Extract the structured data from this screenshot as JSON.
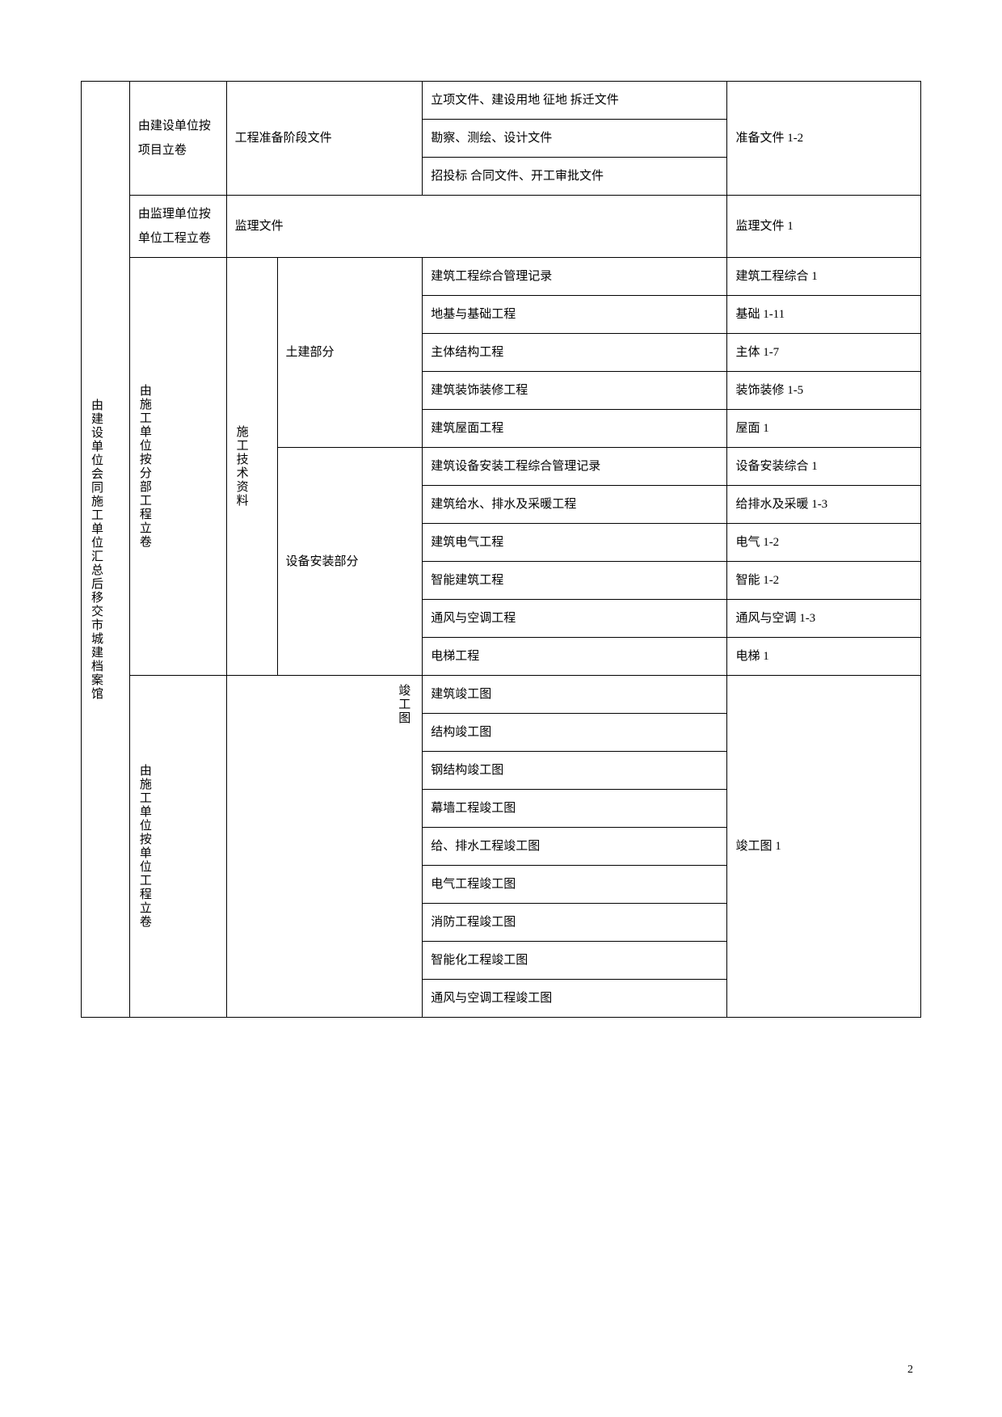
{
  "table": {
    "col1_master": "由建设单位会同施工单位汇总后移交市城建档案馆",
    "section_prep": {
      "by": "由建设单位按项目立卷",
      "stage": "工程准备阶段文件",
      "rows": [
        {
          "desc": "立项文件、建设用地 征地 拆迁文件",
          "code": "准备文件 1-2",
          "code_merge_start": true,
          "code_rowspan": 2
        },
        {
          "desc": "勘察、测绘、设计文件"
        },
        {
          "desc": "招投标 合同文件、开工审批文件",
          "code": ""
        }
      ]
    },
    "section_supervision": {
      "by": "由监理单位按单位工程立卷",
      "stage": "监理文件",
      "code": "监理文件 1"
    },
    "section_construction": {
      "by": "由施工单位按分部工程立卷",
      "mid": "施工技术资料",
      "civil": {
        "label": "土建部分",
        "rows": [
          {
            "desc": "建筑工程综合管理记录",
            "code": "建筑工程综合 1"
          },
          {
            "desc": "地基与基础工程",
            "code": "基础 1-11"
          },
          {
            "desc": "主体结构工程",
            "code": "主体 1-7"
          },
          {
            "desc": "建筑装饰装修工程",
            "code": "装饰装修 1-5"
          },
          {
            "desc": "建筑屋面工程",
            "code": "屋面 1"
          }
        ]
      },
      "install": {
        "label": "设备安装部分",
        "rows": [
          {
            "desc": "建筑设备安装工程综合管理记录",
            "code": "设备安装综合 1"
          },
          {
            "desc": "建筑给水、排水及采暖工程",
            "code": "给排水及采暖 1-3"
          },
          {
            "desc": "建筑电气工程",
            "code": "电气 1-2"
          },
          {
            "desc": "智能建筑工程",
            "code": "智能 1-2"
          },
          {
            "desc": "通风与空调工程",
            "code": "通风与空调 1-3"
          },
          {
            "desc": "电梯工程",
            "code": "电梯 1"
          }
        ]
      }
    },
    "section_asbuilt": {
      "by": "由施工单位按单位工程立卷",
      "mid": "竣工图",
      "code": "竣工图 1",
      "rows": [
        "建筑竣工图",
        "结构竣工图",
        "钢结构竣工图",
        "幕墙工程竣工图",
        "给、排水工程竣工图",
        "电气工程竣工图",
        "消防工程竣工图",
        "智能化工程竣工图",
        "通风与空调工程竣工图"
      ]
    }
  },
  "page_number": "2"
}
